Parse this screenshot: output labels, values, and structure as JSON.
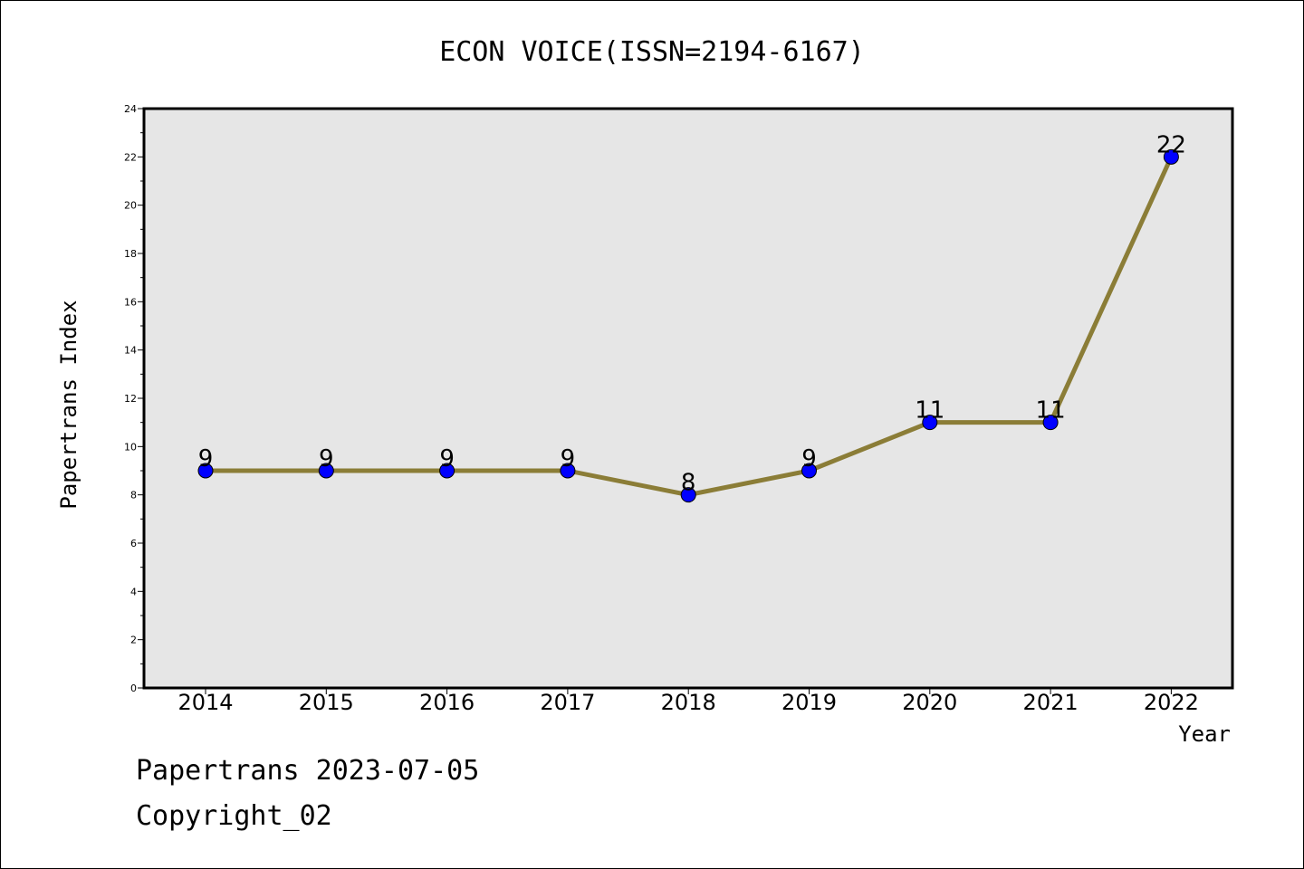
{
  "chart_data": {
    "type": "line",
    "title": "ECON VOICE(ISSN=2194-6167)",
    "xlabel": "Year",
    "ylabel": "Papertrans Index",
    "categories": [
      "2014",
      "2015",
      "2016",
      "2017",
      "2018",
      "2019",
      "2020",
      "2021",
      "2022"
    ],
    "series": [
      {
        "values": [
          9,
          9,
          9,
          9,
          8,
          9,
          11,
          11,
          22
        ]
      }
    ],
    "ylim": [
      0,
      24
    ],
    "yticks": [
      0,
      2,
      4,
      6,
      8,
      10,
      12,
      14,
      16,
      18,
      20,
      22,
      24
    ],
    "grid": false,
    "data_labels": true,
    "colors": {
      "line": "#8b7d37",
      "marker": "#0000ff",
      "plot_background": "#e6e6e6"
    }
  },
  "footer": {
    "date_line": "Papertrans 2023-07-05",
    "copyright": "Copyright_02"
  }
}
